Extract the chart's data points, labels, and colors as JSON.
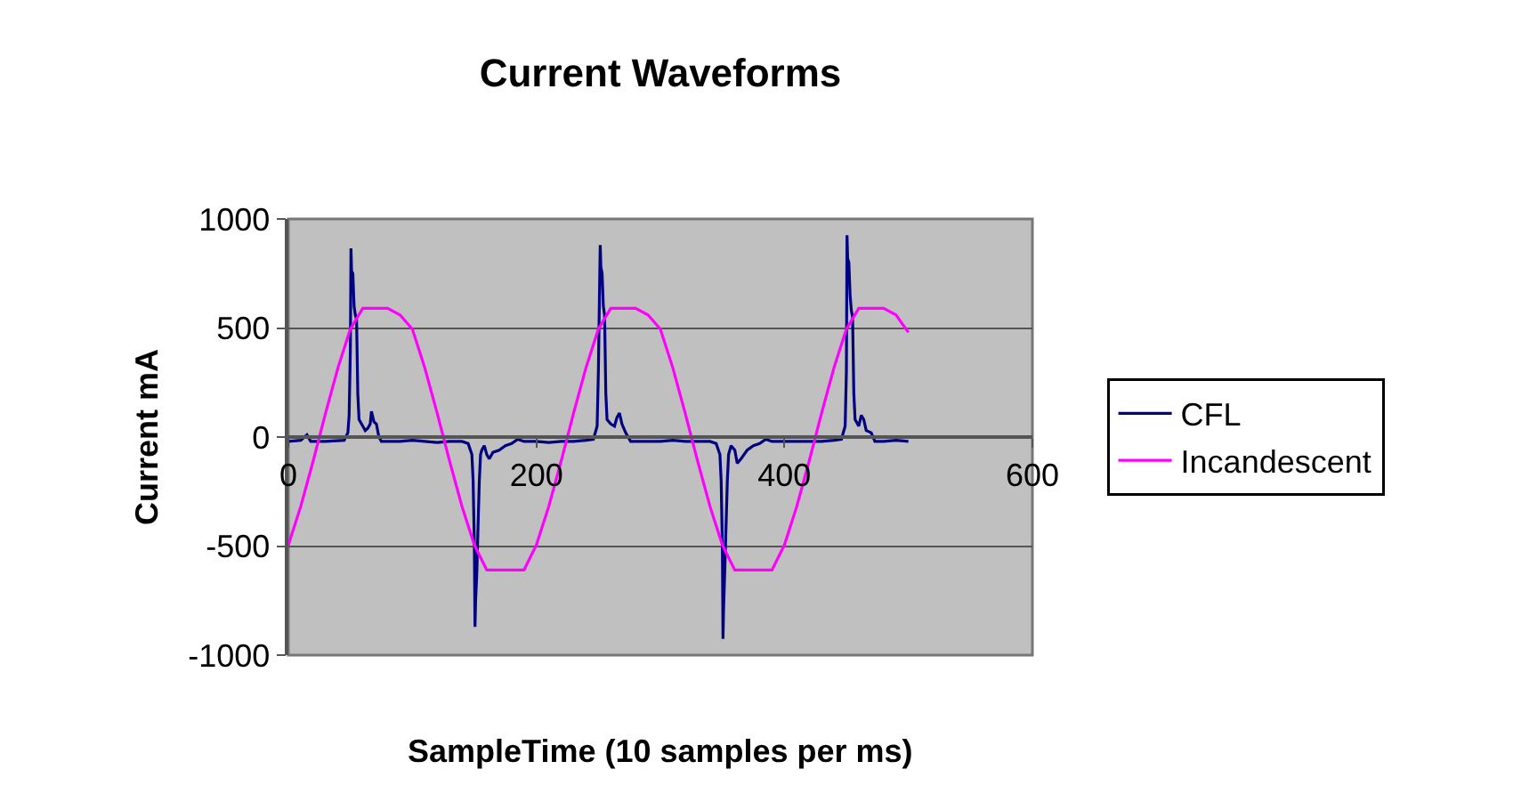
{
  "chart_data": {
    "type": "line",
    "title": "Current Waveforms",
    "xlabel": "SampleTime (10 samples per ms)",
    "ylabel": "Current mA",
    "xlim": [
      0,
      600
    ],
    "xticks": [
      0,
      200,
      400,
      600
    ],
    "ylim": [
      -1000,
      1000
    ],
    "yticks": [
      -1000,
      -500,
      0,
      500,
      1000
    ],
    "grid": "y",
    "legend": "right",
    "marker": "none",
    "line_style": "solid",
    "series": [
      {
        "name": "CFL",
        "color": "#000080",
        "x": [
          0,
          10,
          15,
          18,
          30,
          45,
          48,
          49,
          50,
          50.5,
          51,
          52,
          53,
          54,
          55,
          56,
          57,
          60,
          62,
          64,
          66,
          67,
          69,
          71,
          73,
          75,
          90,
          100,
          110,
          120,
          130,
          140,
          145,
          148,
          149,
          150,
          150.5,
          151,
          152,
          153,
          154,
          155,
          156,
          158,
          160,
          162,
          165,
          170,
          175,
          180,
          185,
          190,
          200,
          210,
          220,
          230,
          240,
          246,
          249,
          250,
          251,
          251.5,
          252,
          253,
          254,
          255,
          256,
          257,
          260,
          263,
          265,
          267,
          269,
          272,
          276,
          290,
          300,
          310,
          320,
          330,
          340,
          345,
          348,
          349,
          350,
          350.5,
          351,
          352,
          353,
          354,
          355,
          357,
          360,
          362,
          365,
          370,
          375,
          380,
          385,
          390,
          400,
          410,
          420,
          430,
          440,
          446,
          449,
          450,
          450.5,
          451,
          452,
          453,
          454,
          455,
          456,
          457,
          460,
          462,
          464,
          466,
          470,
          473,
          480,
          490,
          500
        ],
        "values": [
          -20,
          -15,
          10,
          -20,
          -20,
          -15,
          20,
          100,
          400,
          865,
          760,
          750,
          600,
          560,
          540,
          200,
          80,
          50,
          30,
          40,
          60,
          118,
          70,
          60,
          0,
          -20,
          -20,
          -15,
          -20,
          -25,
          -20,
          -20,
          -30,
          -80,
          -200,
          -500,
          -870,
          -750,
          -620,
          -400,
          -200,
          -80,
          -60,
          -40,
          -80,
          -100,
          -70,
          -60,
          -40,
          -30,
          -10,
          -20,
          -20,
          -25,
          -20,
          -20,
          -15,
          -10,
          50,
          300,
          700,
          880,
          780,
          750,
          600,
          560,
          200,
          80,
          60,
          50,
          90,
          110,
          60,
          20,
          -20,
          -20,
          -20,
          -15,
          -20,
          -20,
          -20,
          -30,
          -80,
          -200,
          -500,
          -925,
          -780,
          -600,
          -400,
          -200,
          -80,
          -40,
          -60,
          -120,
          -100,
          -60,
          -40,
          -30,
          -10,
          -20,
          -20,
          -20,
          -20,
          -20,
          -15,
          -10,
          50,
          300,
          925,
          820,
          800,
          650,
          580,
          550,
          200,
          80,
          50,
          100,
          80,
          30,
          20,
          -20,
          -20,
          -15,
          -20
        ]
      },
      {
        "name": "Incandescent",
        "color": "#ff00ff",
        "x": [
          0,
          10,
          20,
          30,
          40,
          50,
          60,
          70,
          80,
          90,
          100,
          110,
          120,
          130,
          140,
          150,
          160,
          170,
          180,
          190,
          200,
          210,
          220,
          230,
          240,
          250,
          260,
          270,
          280,
          290,
          300,
          310,
          320,
          330,
          340,
          350,
          360,
          370,
          380,
          390,
          400,
          410,
          420,
          430,
          440,
          450,
          460,
          470,
          480,
          490,
          500
        ],
        "values": [
          -495,
          -318,
          -110,
          110,
          318,
          495,
          590,
          590,
          590,
          560,
          495,
          318,
          110,
          -110,
          -318,
          -495,
          -610,
          -610,
          -610,
          -610,
          -495,
          -318,
          -110,
          110,
          318,
          495,
          590,
          590,
          590,
          560,
          495,
          318,
          110,
          -110,
          -318,
          -495,
          -610,
          -610,
          -610,
          -610,
          -495,
          -318,
          -110,
          110,
          318,
          495,
          590,
          590,
          590,
          560,
          480
        ]
      }
    ]
  }
}
